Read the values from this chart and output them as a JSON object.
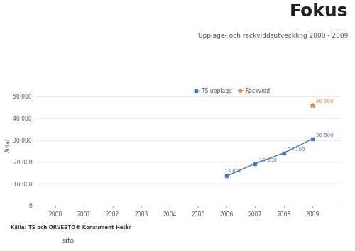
{
  "title": "Fokus",
  "subtitle": "Upplage- och räckviddsutveckling 2000 - 2009",
  "ylabel": "Antal",
  "background_color": "#ffffff",
  "x_years": [
    2000,
    2001,
    2002,
    2003,
    2004,
    2005,
    2006,
    2007,
    2008,
    2009
  ],
  "upplage_years": [
    2006,
    2007,
    2008,
    2009
  ],
  "upplage_values": [
    13600,
    19300,
    24100,
    30500
  ],
  "rackvidd_years": [
    2009
  ],
  "rackvidd_values": [
    46000
  ],
  "upplage_color": "#4472c4",
  "rackvidd_color": "#ed7d31",
  "ylim": [
    0,
    55000
  ],
  "yticks": [
    0,
    10000,
    20000,
    30000,
    40000,
    50000
  ],
  "ytick_labels": [
    "0",
    "10 000",
    "20 000",
    "30 000",
    "40 000",
    "50 000"
  ],
  "legend_ts_upplage": "TS upplage",
  "legend_rackvidd": "Räckvidd",
  "source_text": "Källa: TS och ORVESTO® Konsument Helår",
  "title_fontsize": 18,
  "subtitle_fontsize": 6.5,
  "axis_label_fontsize": 5.5,
  "tick_fontsize": 5.5,
  "annotation_fontsize": 5,
  "legend_fontsize": 5.5,
  "ts_box_color": "#4472c4",
  "tns_bg_color": "#d4006e",
  "sifo_text_color": "#555555"
}
